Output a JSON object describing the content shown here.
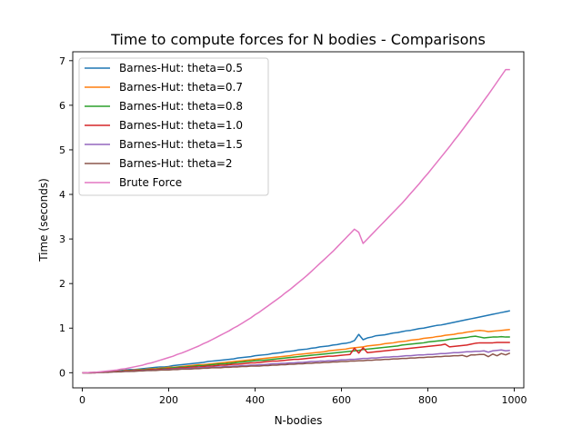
{
  "chart_data": {
    "type": "line",
    "title": "Time to compute forces for N bodies - Comparisons",
    "xlabel": "N-bodies",
    "ylabel": "Time (seconds)",
    "xlim": [
      -22,
      1022
    ],
    "ylim": [
      -0.34,
      7.2
    ],
    "xticks": [
      0,
      200,
      400,
      600,
      800,
      1000
    ],
    "yticks": [
      0,
      1,
      2,
      3,
      4,
      5,
      6,
      7
    ],
    "grid": false,
    "legend_position": "upper left",
    "x": [
      0,
      10,
      20,
      30,
      40,
      50,
      60,
      70,
      80,
      90,
      100,
      110,
      120,
      130,
      140,
      150,
      160,
      170,
      180,
      190,
      200,
      210,
      220,
      230,
      240,
      250,
      260,
      270,
      280,
      290,
      300,
      310,
      320,
      330,
      340,
      350,
      360,
      370,
      380,
      390,
      400,
      410,
      420,
      430,
      440,
      450,
      460,
      470,
      480,
      490,
      500,
      510,
      520,
      530,
      540,
      550,
      560,
      570,
      580,
      590,
      600,
      610,
      620,
      630,
      640,
      650,
      660,
      670,
      680,
      690,
      700,
      710,
      720,
      730,
      740,
      750,
      760,
      770,
      780,
      790,
      800,
      810,
      820,
      830,
      840,
      850,
      860,
      870,
      880,
      890,
      900,
      910,
      920,
      930,
      940,
      950,
      960,
      970,
      980,
      990
    ],
    "series": [
      {
        "name": "Barnes-Hut: theta=0.5",
        "color": "#1f77b4",
        "values": [
          0.0,
          0.0,
          0.0,
          0.01,
          0.01,
          0.02,
          0.03,
          0.03,
          0.04,
          0.05,
          0.06,
          0.07,
          0.07,
          0.08,
          0.09,
          0.1,
          0.11,
          0.12,
          0.13,
          0.13,
          0.14,
          0.16,
          0.17,
          0.18,
          0.19,
          0.2,
          0.21,
          0.22,
          0.23,
          0.25,
          0.26,
          0.27,
          0.28,
          0.29,
          0.3,
          0.31,
          0.33,
          0.34,
          0.35,
          0.36,
          0.38,
          0.39,
          0.4,
          0.41,
          0.43,
          0.44,
          0.45,
          0.47,
          0.48,
          0.49,
          0.51,
          0.52,
          0.53,
          0.55,
          0.56,
          0.58,
          0.59,
          0.6,
          0.62,
          0.63,
          0.65,
          0.66,
          0.68,
          0.72,
          0.86,
          0.74,
          0.78,
          0.8,
          0.83,
          0.84,
          0.85,
          0.87,
          0.89,
          0.9,
          0.92,
          0.94,
          0.95,
          0.97,
          0.99,
          1.0,
          1.02,
          1.04,
          1.06,
          1.07,
          1.09,
          1.11,
          1.13,
          1.15,
          1.17,
          1.19,
          1.21,
          1.23,
          1.25,
          1.27,
          1.29,
          1.31,
          1.33,
          1.35,
          1.37,
          1.39
        ]
      },
      {
        "name": "Barnes-Hut: theta=0.7",
        "color": "#ff7f0e",
        "values": [
          0.0,
          0.0,
          0.0,
          0.01,
          0.01,
          0.02,
          0.02,
          0.03,
          0.03,
          0.04,
          0.05,
          0.05,
          0.06,
          0.07,
          0.07,
          0.08,
          0.09,
          0.09,
          0.1,
          0.11,
          0.12,
          0.12,
          0.13,
          0.14,
          0.15,
          0.16,
          0.17,
          0.18,
          0.18,
          0.19,
          0.2,
          0.21,
          0.22,
          0.23,
          0.24,
          0.25,
          0.26,
          0.27,
          0.28,
          0.29,
          0.3,
          0.31,
          0.32,
          0.33,
          0.34,
          0.35,
          0.36,
          0.37,
          0.38,
          0.4,
          0.41,
          0.42,
          0.43,
          0.44,
          0.45,
          0.46,
          0.47,
          0.49,
          0.5,
          0.51,
          0.52,
          0.53,
          0.55,
          0.56,
          0.57,
          0.58,
          0.6,
          0.61,
          0.62,
          0.63,
          0.65,
          0.66,
          0.67,
          0.69,
          0.7,
          0.71,
          0.73,
          0.74,
          0.75,
          0.77,
          0.78,
          0.79,
          0.81,
          0.82,
          0.84,
          0.85,
          0.86,
          0.88,
          0.89,
          0.91,
          0.92,
          0.94,
          0.95,
          0.94,
          0.92,
          0.93,
          0.94,
          0.95,
          0.96,
          0.97
        ]
      },
      {
        "name": "Barnes-Hut: theta=0.8",
        "color": "#2ca02c",
        "values": [
          0.0,
          0.0,
          0.0,
          0.01,
          0.01,
          0.01,
          0.02,
          0.02,
          0.03,
          0.04,
          0.04,
          0.05,
          0.05,
          0.06,
          0.07,
          0.07,
          0.08,
          0.08,
          0.09,
          0.1,
          0.1,
          0.11,
          0.12,
          0.13,
          0.13,
          0.14,
          0.15,
          0.16,
          0.16,
          0.17,
          0.18,
          0.19,
          0.2,
          0.2,
          0.21,
          0.22,
          0.23,
          0.24,
          0.25,
          0.26,
          0.27,
          0.28,
          0.28,
          0.29,
          0.3,
          0.31,
          0.32,
          0.33,
          0.34,
          0.35,
          0.36,
          0.37,
          0.38,
          0.39,
          0.4,
          0.41,
          0.42,
          0.43,
          0.44,
          0.45,
          0.46,
          0.47,
          0.48,
          0.49,
          0.5,
          0.52,
          0.53,
          0.54,
          0.55,
          0.56,
          0.57,
          0.58,
          0.59,
          0.6,
          0.62,
          0.63,
          0.64,
          0.65,
          0.66,
          0.67,
          0.69,
          0.7,
          0.71,
          0.72,
          0.73,
          0.75,
          0.76,
          0.77,
          0.78,
          0.79,
          0.81,
          0.82,
          0.8,
          0.78,
          0.79,
          0.8,
          0.8,
          0.81,
          0.8,
          0.8
        ]
      },
      {
        "name": "Barnes-Hut: theta=1.0",
        "color": "#d62728",
        "values": [
          0.0,
          0.0,
          0.0,
          0.0,
          0.01,
          0.01,
          0.02,
          0.02,
          0.03,
          0.03,
          0.04,
          0.04,
          0.05,
          0.05,
          0.06,
          0.06,
          0.07,
          0.07,
          0.08,
          0.08,
          0.09,
          0.09,
          0.1,
          0.11,
          0.11,
          0.12,
          0.13,
          0.13,
          0.14,
          0.15,
          0.15,
          0.16,
          0.17,
          0.17,
          0.18,
          0.19,
          0.19,
          0.2,
          0.21,
          0.22,
          0.22,
          0.23,
          0.24,
          0.25,
          0.26,
          0.26,
          0.27,
          0.28,
          0.29,
          0.3,
          0.3,
          0.31,
          0.32,
          0.33,
          0.34,
          0.35,
          0.36,
          0.37,
          0.37,
          0.38,
          0.39,
          0.4,
          0.41,
          0.55,
          0.44,
          0.56,
          0.45,
          0.46,
          0.47,
          0.48,
          0.49,
          0.5,
          0.51,
          0.52,
          0.53,
          0.54,
          0.55,
          0.56,
          0.57,
          0.58,
          0.59,
          0.6,
          0.61,
          0.62,
          0.64,
          0.58,
          0.59,
          0.6,
          0.61,
          0.62,
          0.64,
          0.66,
          0.67,
          0.67,
          0.67,
          0.67,
          0.68,
          0.68,
          0.68,
          0.68
        ]
      },
      {
        "name": "Barnes-Hut: theta=1.5",
        "color": "#9467bd",
        "values": [
          0.0,
          0.0,
          0.0,
          0.0,
          0.01,
          0.01,
          0.01,
          0.02,
          0.02,
          0.03,
          0.03,
          0.03,
          0.04,
          0.04,
          0.05,
          0.05,
          0.05,
          0.06,
          0.06,
          0.07,
          0.07,
          0.08,
          0.08,
          0.09,
          0.09,
          0.1,
          0.1,
          0.11,
          0.11,
          0.12,
          0.12,
          0.13,
          0.13,
          0.14,
          0.14,
          0.15,
          0.15,
          0.16,
          0.16,
          0.17,
          0.17,
          0.18,
          0.18,
          0.19,
          0.2,
          0.2,
          0.21,
          0.21,
          0.22,
          0.22,
          0.23,
          0.23,
          0.24,
          0.25,
          0.25,
          0.26,
          0.26,
          0.27,
          0.27,
          0.28,
          0.29,
          0.29,
          0.3,
          0.3,
          0.31,
          0.32,
          0.32,
          0.33,
          0.33,
          0.34,
          0.35,
          0.35,
          0.36,
          0.36,
          0.37,
          0.38,
          0.38,
          0.39,
          0.4,
          0.4,
          0.41,
          0.41,
          0.42,
          0.43,
          0.43,
          0.44,
          0.45,
          0.45,
          0.46,
          0.47,
          0.47,
          0.48,
          0.48,
          0.49,
          0.46,
          0.49,
          0.5,
          0.51,
          0.49,
          0.5
        ]
      },
      {
        "name": "Barnes-Hut: theta=2",
        "color": "#8c564b",
        "values": [
          0.0,
          0.0,
          0.0,
          0.0,
          0.01,
          0.01,
          0.01,
          0.02,
          0.02,
          0.02,
          0.03,
          0.03,
          0.03,
          0.04,
          0.04,
          0.05,
          0.05,
          0.05,
          0.06,
          0.06,
          0.06,
          0.07,
          0.07,
          0.08,
          0.08,
          0.08,
          0.09,
          0.09,
          0.1,
          0.1,
          0.11,
          0.11,
          0.11,
          0.12,
          0.12,
          0.13,
          0.13,
          0.14,
          0.14,
          0.15,
          0.15,
          0.15,
          0.16,
          0.16,
          0.17,
          0.17,
          0.18,
          0.18,
          0.19,
          0.19,
          0.2,
          0.2,
          0.21,
          0.21,
          0.22,
          0.22,
          0.23,
          0.23,
          0.24,
          0.24,
          0.25,
          0.25,
          0.26,
          0.26,
          0.27,
          0.27,
          0.28,
          0.28,
          0.29,
          0.29,
          0.3,
          0.3,
          0.31,
          0.31,
          0.32,
          0.32,
          0.33,
          0.33,
          0.34,
          0.34,
          0.35,
          0.35,
          0.36,
          0.36,
          0.37,
          0.37,
          0.38,
          0.38,
          0.39,
          0.36,
          0.4,
          0.4,
          0.41,
          0.41,
          0.36,
          0.42,
          0.38,
          0.43,
          0.4,
          0.44
        ]
      },
      {
        "name": "Brute Force",
        "color": "#e377c2",
        "values": [
          0.0,
          0.0,
          0.01,
          0.01,
          0.02,
          0.03,
          0.04,
          0.05,
          0.06,
          0.08,
          0.09,
          0.11,
          0.13,
          0.15,
          0.17,
          0.2,
          0.22,
          0.25,
          0.28,
          0.31,
          0.34,
          0.37,
          0.41,
          0.44,
          0.48,
          0.52,
          0.56,
          0.6,
          0.65,
          0.69,
          0.74,
          0.79,
          0.84,
          0.89,
          0.94,
          1.0,
          1.05,
          1.11,
          1.17,
          1.23,
          1.3,
          1.36,
          1.43,
          1.5,
          1.57,
          1.64,
          1.71,
          1.79,
          1.86,
          1.94,
          2.02,
          2.1,
          2.18,
          2.27,
          2.36,
          2.45,
          2.54,
          2.63,
          2.72,
          2.82,
          2.92,
          3.02,
          3.12,
          3.22,
          3.15,
          2.9,
          3.0,
          3.1,
          3.2,
          3.3,
          3.4,
          3.5,
          3.6,
          3.7,
          3.8,
          3.91,
          4.02,
          4.13,
          4.24,
          4.36,
          4.47,
          4.59,
          4.71,
          4.83,
          4.95,
          5.07,
          5.2,
          5.32,
          5.45,
          5.58,
          5.71,
          5.84,
          5.97,
          6.11,
          6.24,
          6.38,
          6.52,
          6.66,
          6.8,
          6.8
        ]
      }
    ]
  }
}
